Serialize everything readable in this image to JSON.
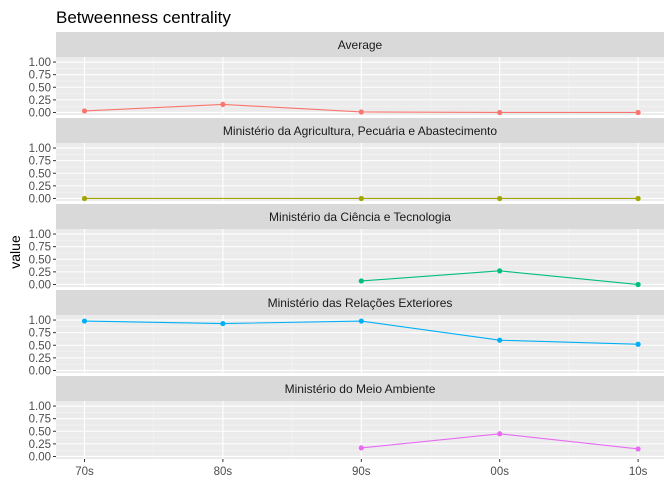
{
  "chart_data": {
    "type": "line",
    "title": "Betweenness centrality",
    "ylabel": "value",
    "xlabel": "",
    "categories": [
      "70s",
      "80s",
      "90s",
      "00s",
      "10s"
    ],
    "y_ticks": [
      "0.00",
      "0.25",
      "0.50",
      "0.75",
      "1.00"
    ],
    "ylim": [
      -0.05,
      1.1
    ],
    "grid": true,
    "legend": "none",
    "facets": [
      {
        "name": "Average",
        "color": "#F8766D",
        "values": [
          0.03,
          0.16,
          0.01,
          0.0,
          0.0
        ]
      },
      {
        "name": "Ministério da Agricultura, Pecuária e Abastecimento",
        "color": "#A3A500",
        "values": [
          0.0,
          null,
          0.0,
          0.0,
          0.0
        ]
      },
      {
        "name": "Ministério da Ciência e Tecnologia",
        "color": "#00BF7D",
        "values": [
          null,
          null,
          0.07,
          0.27,
          0.0
        ]
      },
      {
        "name": "Ministério das Relações Exteriores",
        "color": "#00B0F6",
        "values": [
          0.98,
          0.93,
          0.98,
          0.6,
          0.52
        ]
      },
      {
        "name": "Ministério do Meio Ambiente",
        "color": "#E76BF3",
        "values": [
          null,
          null,
          0.17,
          0.45,
          0.15
        ]
      }
    ]
  }
}
